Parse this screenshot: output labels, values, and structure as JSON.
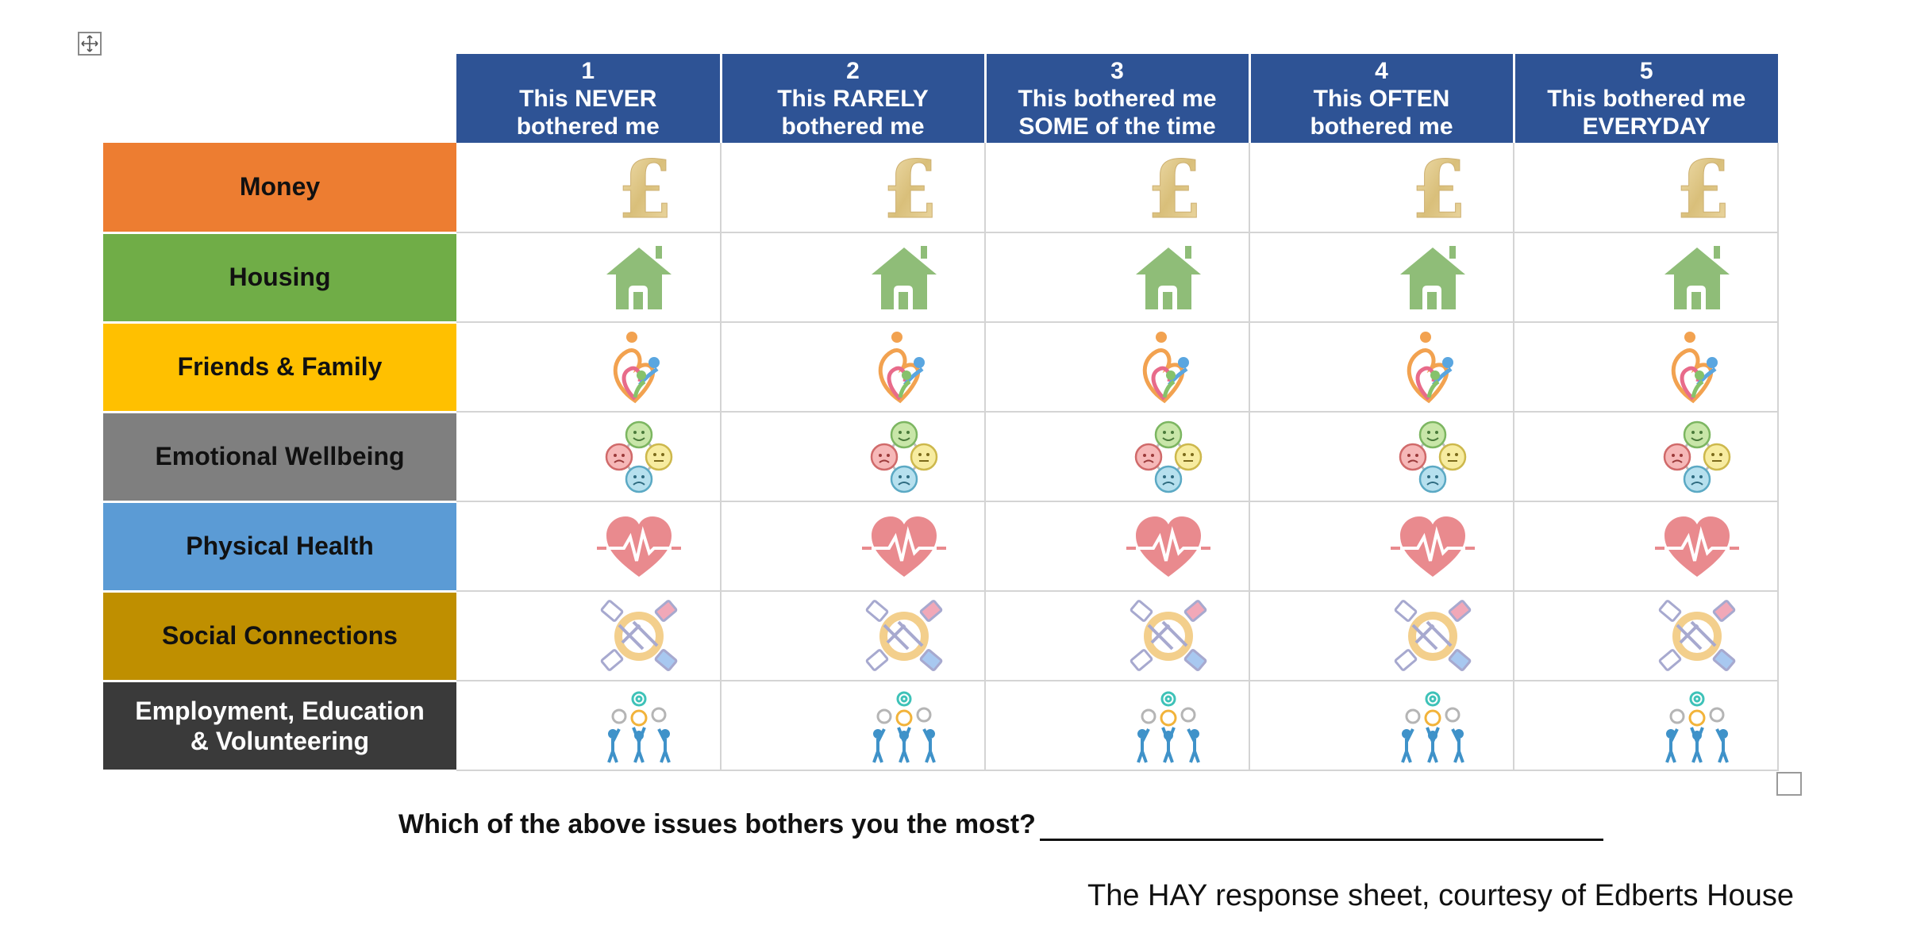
{
  "columns": [
    {
      "num": "1",
      "line1": "This NEVER",
      "line2": "bothered me"
    },
    {
      "num": "2",
      "line1": "This RARELY",
      "line2": "bothered me"
    },
    {
      "num": "3",
      "line1": "This bothered me",
      "line2": "SOME of the time"
    },
    {
      "num": "4",
      "line1": "This OFTEN",
      "line2": "bothered me"
    },
    {
      "num": "5",
      "line1": "This bothered me",
      "line2": "EVERYDAY"
    }
  ],
  "rows": [
    {
      "label": "Money",
      "color": "#ed7d31",
      "icon": "pound-icon"
    },
    {
      "label": "Housing",
      "color": "#70ad47",
      "icon": "house-icon"
    },
    {
      "label": "Friends & Family",
      "color": "#ffc000",
      "icon": "family-heart-icon"
    },
    {
      "label": "Emotional Wellbeing",
      "color": "#7f7f7f",
      "icon": "emotions-faces-icon"
    },
    {
      "label": "Physical Health",
      "color": "#5b9bd5",
      "icon": "heartbeat-icon"
    },
    {
      "label": "Social Connections",
      "color": "#bf8f00",
      "icon": "handshake-icon"
    },
    {
      "label": "Employment, Education",
      "label2": "& Volunteering",
      "color": "#3a3a3a",
      "icon": "teamwork-gears-icon"
    }
  ],
  "question": "Which of the above issues bothers you the most?",
  "caption": "The HAY response sheet, courtesy of Edberts House"
}
